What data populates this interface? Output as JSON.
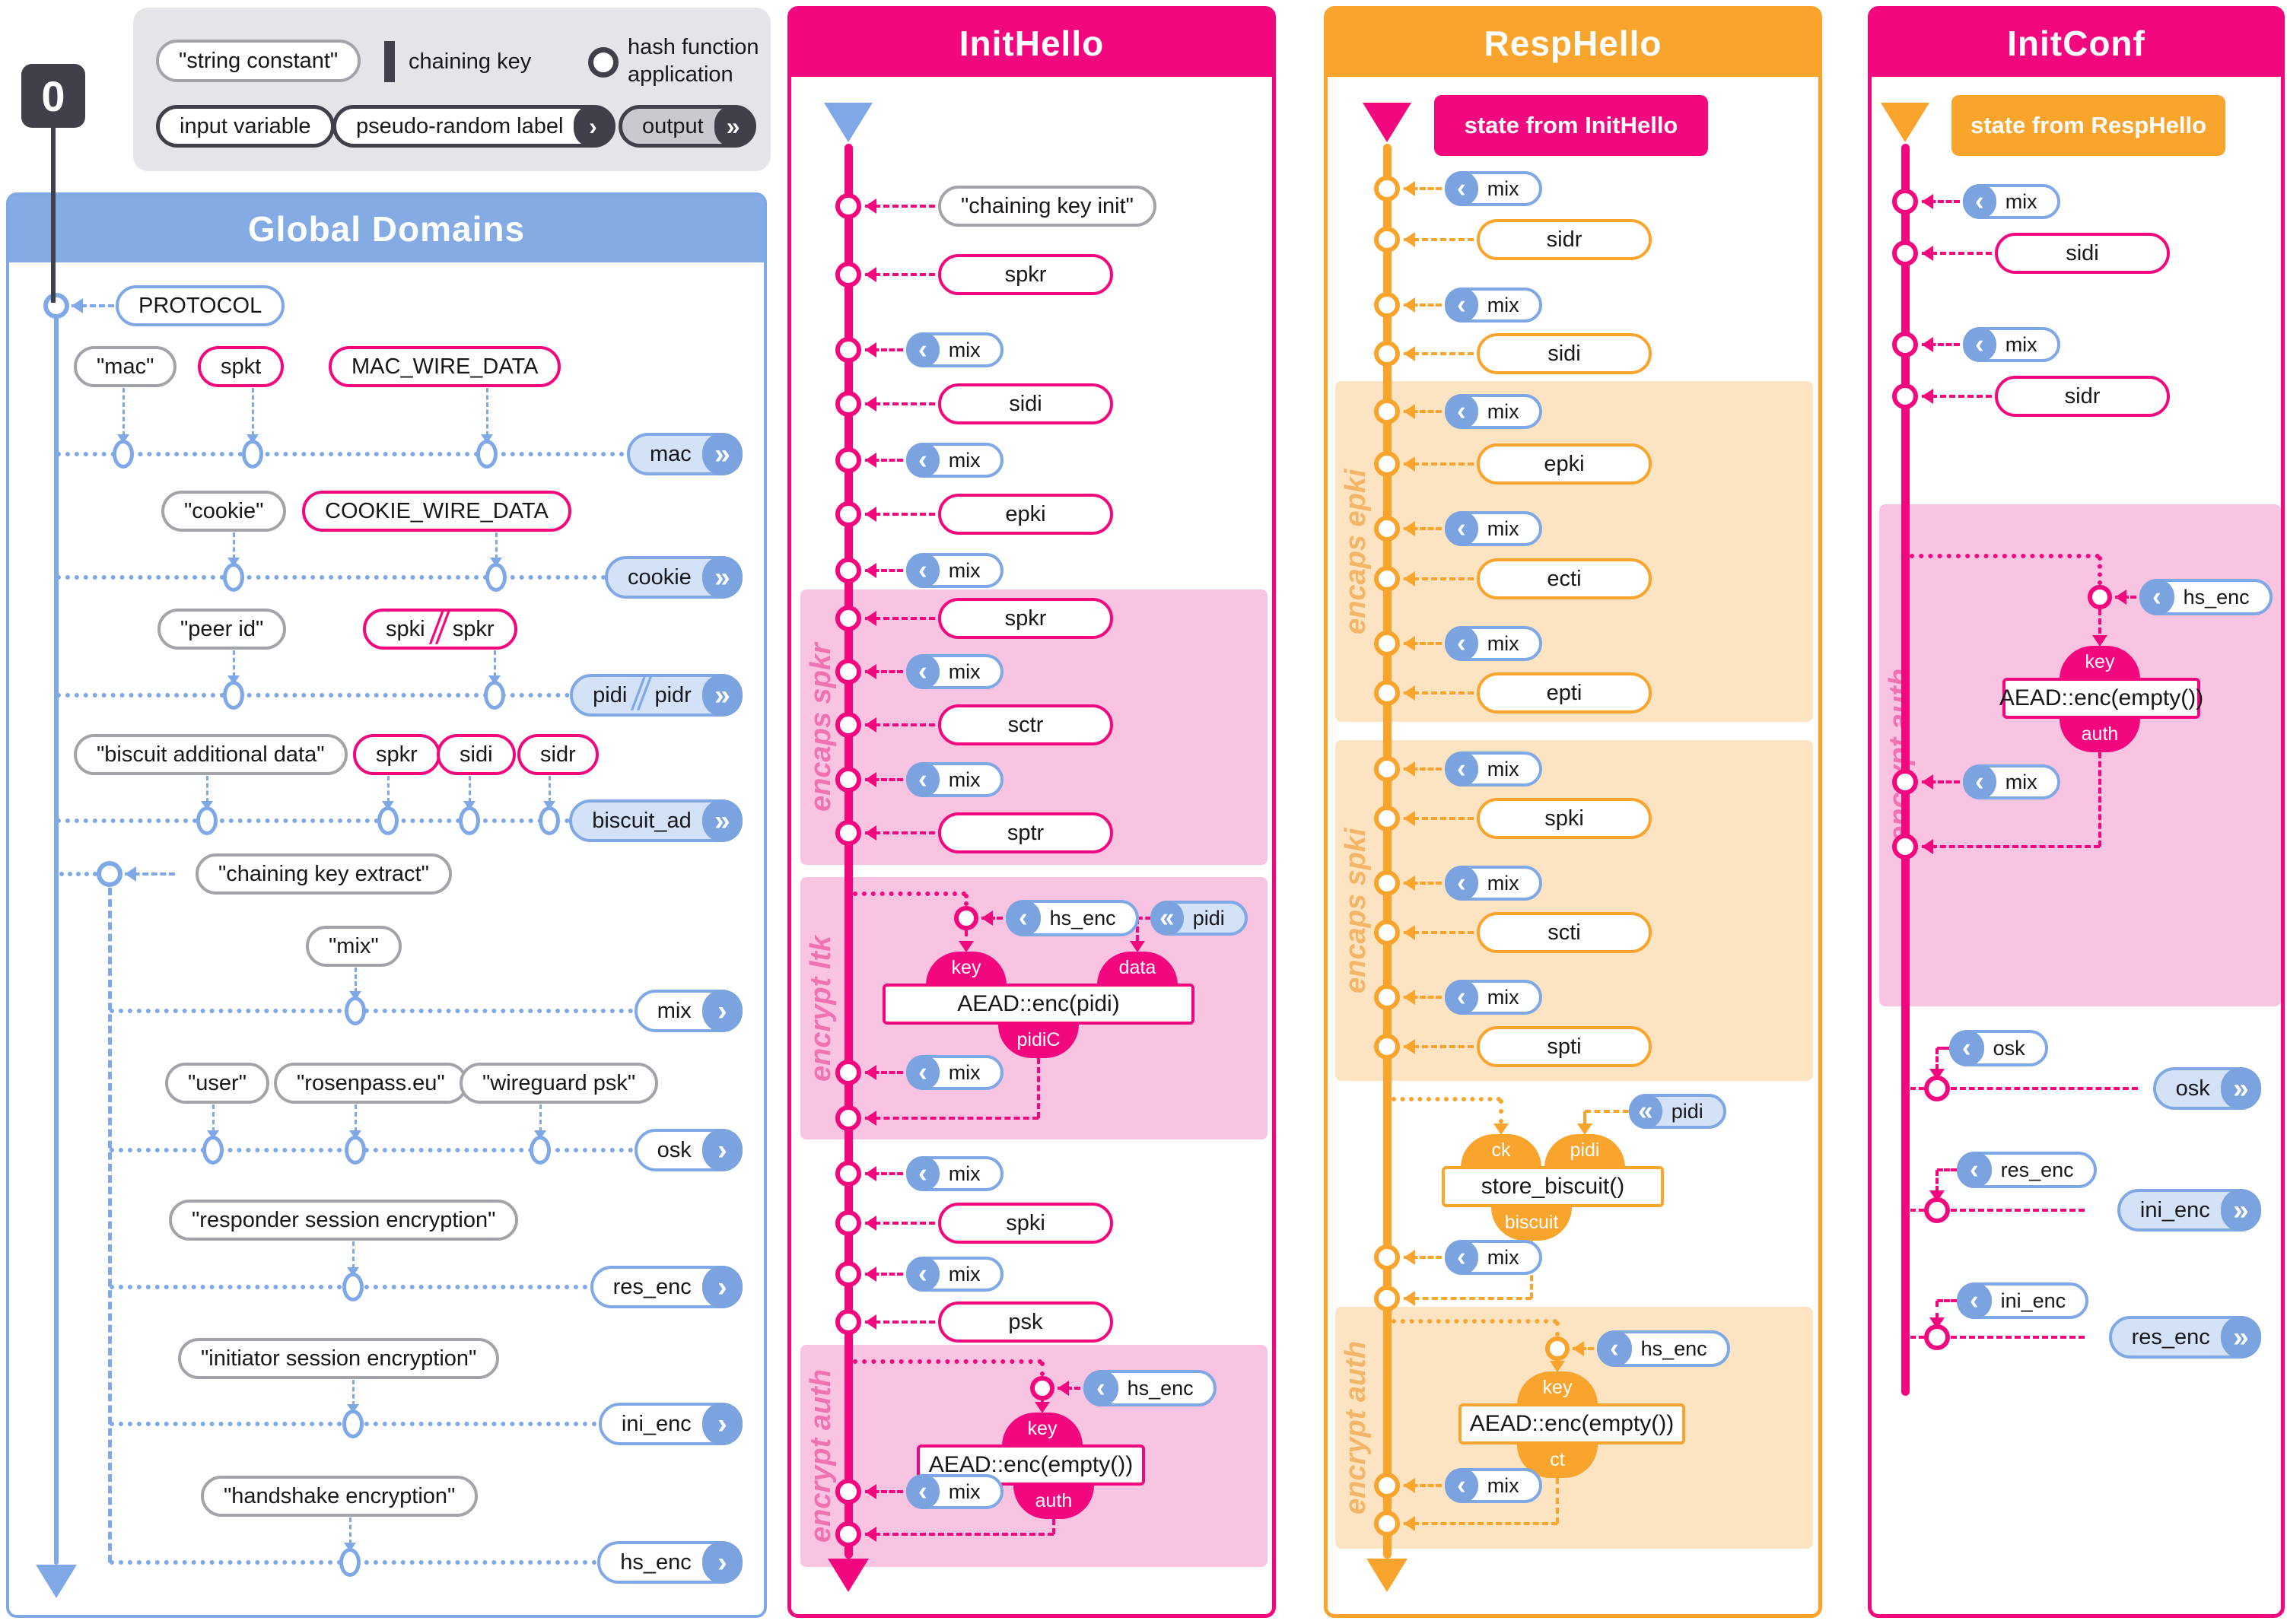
{
  "zero_badge": "0",
  "colors": {
    "blue": "#7fa8e6",
    "blue_head": "#7ba3e0",
    "blue_fill": "#d4e2f8",
    "blue_header": "#84abe4",
    "pink": "#f2077f",
    "pink_fill": "#f9c4e1",
    "pink_label": "#f172b0",
    "orange": "#f9a42d",
    "orange_fill": "#fce3c1",
    "orange_label": "#f4b566",
    "gray_border": "#a3a3aa",
    "dark": "#3f4049",
    "legend_bg": "#e5e5e9",
    "text": "#17171c"
  },
  "legend": {
    "string_constant": "\"string constant\"",
    "chaining_key": "chaining key",
    "hash_line1": "hash function",
    "hash_line2": "application",
    "input_variable": "input variable",
    "pseudo_random_label": "pseudo-random label",
    "output": "output"
  },
  "global": {
    "title": "Global Domains",
    "protocol_label": "PROTOCOL",
    "extract_label": "\"chaining key extract\"",
    "rows": [
      {
        "inputs": [
          {
            "style": "const",
            "label": "\"mac\""
          },
          {
            "style": "var",
            "label": "spkt"
          },
          {
            "style": "var",
            "label": "MAC_WIRE_DATA"
          }
        ],
        "output": {
          "label": "mac",
          "kind": "out"
        }
      },
      {
        "inputs": [
          {
            "style": "const",
            "label": "\"cookie\""
          },
          {
            "style": "var",
            "label": "COOKIE_WIRE_DATA"
          }
        ],
        "output": {
          "label": "cookie",
          "kind": "out"
        }
      },
      {
        "inputs": [
          {
            "style": "const",
            "label": "\"peer id\""
          },
          {
            "style": "var",
            "label": "spki / spkr",
            "slash": true,
            "parts": [
              "spki",
              "spkr"
            ]
          }
        ],
        "output": {
          "label": "pidi / pidr",
          "kind": "out",
          "slash": true,
          "parts": [
            "pidi",
            "pidr"
          ]
        }
      },
      {
        "inputs": [
          {
            "style": "const",
            "label": "\"biscuit additional data\""
          },
          {
            "style": "var",
            "label": "spkr"
          },
          {
            "style": "var",
            "label": "sidi"
          },
          {
            "style": "var",
            "label": "sidr"
          }
        ],
        "output": {
          "label": "biscuit_ad",
          "kind": "out"
        }
      },
      {
        "inputs": [
          {
            "style": "const",
            "label": "\"mix\""
          }
        ],
        "output": {
          "label": "mix",
          "kind": "def"
        }
      },
      {
        "inputs": [
          {
            "style": "const",
            "label": "\"user\""
          },
          {
            "style": "const",
            "label": "\"rosenpass.eu\""
          },
          {
            "style": "const",
            "label": "\"wireguard psk\""
          }
        ],
        "output": {
          "label": "osk",
          "kind": "def"
        }
      },
      {
        "inputs": [
          {
            "style": "const",
            "label": "\"responder session encryption\""
          }
        ],
        "output": {
          "label": "res_enc",
          "kind": "def"
        }
      },
      {
        "inputs": [
          {
            "style": "const",
            "label": "\"initiator session encryption\""
          }
        ],
        "output": {
          "label": "ini_enc",
          "kind": "def"
        }
      },
      {
        "inputs": [
          {
            "style": "const",
            "label": "\"handshake encryption\""
          }
        ],
        "output": {
          "label": "hs_enc",
          "kind": "def"
        }
      }
    ]
  },
  "init_hello": {
    "title": "InitHello",
    "steps": [
      {
        "k": "const",
        "label": "\"chaining key init\""
      },
      {
        "k": "var",
        "label": "spkr"
      },
      {
        "k": "mix",
        "label": "mix"
      },
      {
        "k": "var",
        "label": "sidi"
      },
      {
        "k": "mix",
        "label": "mix"
      },
      {
        "k": "var",
        "label": "epki"
      },
      {
        "k": "mix",
        "label": "mix"
      },
      {
        "k": "var",
        "label": "spkr"
      },
      {
        "k": "mix",
        "label": "mix"
      },
      {
        "k": "var",
        "label": "sctr"
      },
      {
        "k": "mix",
        "label": "mix"
      },
      {
        "k": "var",
        "label": "sptr"
      },
      {
        "k": "mix",
        "label": "mix"
      },
      {
        "k": "var",
        "label": "spki"
      },
      {
        "k": "mix",
        "label": "mix"
      },
      {
        "k": "var",
        "label": "psk"
      }
    ],
    "sections": [
      {
        "label": "encaps spkr"
      },
      {
        "label": "encrypt ltk"
      },
      {
        "label": "encrypt auth"
      }
    ],
    "clusters": [
      {
        "func": "AEAD::enc(pidi)",
        "key_port": "key",
        "key_src": "hs_enc",
        "data_port": "data",
        "data_src": "pidi",
        "out_port": "pidiC",
        "mix": "mix"
      },
      {
        "func": "AEAD::enc(empty())",
        "key_port": "key",
        "key_src": "hs_enc",
        "out_port": "auth",
        "mix": "mix"
      }
    ]
  },
  "resp_hello": {
    "title": "RespHello",
    "state_badge": "state from InitHello",
    "steps": [
      {
        "k": "mix",
        "label": "mix"
      },
      {
        "k": "var",
        "label": "sidr"
      },
      {
        "k": "mix",
        "label": "mix"
      },
      {
        "k": "var",
        "label": "sidi"
      },
      {
        "k": "mix",
        "label": "mix"
      },
      {
        "k": "var",
        "label": "epki"
      },
      {
        "k": "mix",
        "label": "mix"
      },
      {
        "k": "var",
        "label": "ecti"
      },
      {
        "k": "mix",
        "label": "mix"
      },
      {
        "k": "var",
        "label": "epti"
      },
      {
        "k": "mix",
        "label": "mix"
      },
      {
        "k": "var",
        "label": "spki"
      },
      {
        "k": "mix",
        "label": "mix"
      },
      {
        "k": "var",
        "label": "scti"
      },
      {
        "k": "mix",
        "label": "mix"
      },
      {
        "k": "var",
        "label": "spti"
      }
    ],
    "sections": [
      {
        "label": "encaps epki"
      },
      {
        "label": "encaps spki"
      },
      {
        "label": "encrypt auth"
      }
    ],
    "clusters": [
      {
        "func": "store_biscuit()",
        "key_port": "ck",
        "data_port": "pidi",
        "data_src": "pidi",
        "out_port": "biscuit",
        "mix": "mix"
      },
      {
        "func": "AEAD::enc(empty())",
        "key_port": "key",
        "key_src": "hs_enc",
        "out_port": "ct",
        "mix": "mix"
      }
    ]
  },
  "init_conf": {
    "title": "InitConf",
    "state_badge": "state from RespHello",
    "steps": [
      {
        "k": "mix",
        "label": "mix"
      },
      {
        "k": "var",
        "label": "sidi"
      },
      {
        "k": "mix",
        "label": "mix"
      },
      {
        "k": "var",
        "label": "sidr"
      }
    ],
    "sections": [
      {
        "label": "encrypt auth"
      }
    ],
    "clusters": [
      {
        "func": "AEAD::enc(empty())",
        "key_port": "key",
        "key_src": "hs_enc",
        "out_port": "auth",
        "mix": "mix"
      }
    ],
    "outputs": [
      {
        "use": "osk",
        "out": "osk"
      },
      {
        "use": "res_enc",
        "out": "ini_enc"
      },
      {
        "use": "ini_enc",
        "out": "res_enc"
      }
    ]
  }
}
